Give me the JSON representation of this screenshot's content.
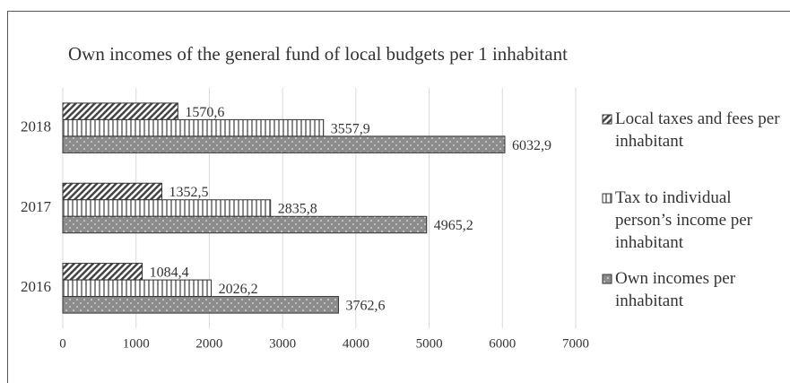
{
  "chart_data": {
    "type": "bar",
    "orientation": "horizontal",
    "title": "Own incomes of the general fund of local budgets per 1 inhabitant",
    "categories": [
      "2016",
      "2017",
      "2018"
    ],
    "series": [
      {
        "name": "Local taxes and fees per inhabitant",
        "color": "#444444",
        "pattern": "diagonal",
        "values": [
          1084.4,
          1352.5,
          1570.6
        ],
        "value_labels": [
          "1084,4",
          "1352,5",
          "1570,6"
        ]
      },
      {
        "name": "Tax to individual person’s income per inhabitant",
        "color": "#8a8a8a",
        "pattern": "vertical",
        "values": [
          2026.2,
          2835.8,
          3557.9
        ],
        "value_labels": [
          "2026,2",
          "2835,8",
          "3557,9"
        ]
      },
      {
        "name": "Own incomes per inhabitant",
        "color": "#8c8c8c",
        "pattern": "dots",
        "values": [
          3762.6,
          4965.2,
          6032.9
        ],
        "value_labels": [
          "3762,6",
          "4965,2",
          "6032,9"
        ]
      }
    ],
    "xlim": [
      0,
      7000
    ],
    "xticks": [
      0,
      1000,
      2000,
      3000,
      4000,
      5000,
      6000,
      7000
    ],
    "grid": true,
    "legend": "right"
  }
}
